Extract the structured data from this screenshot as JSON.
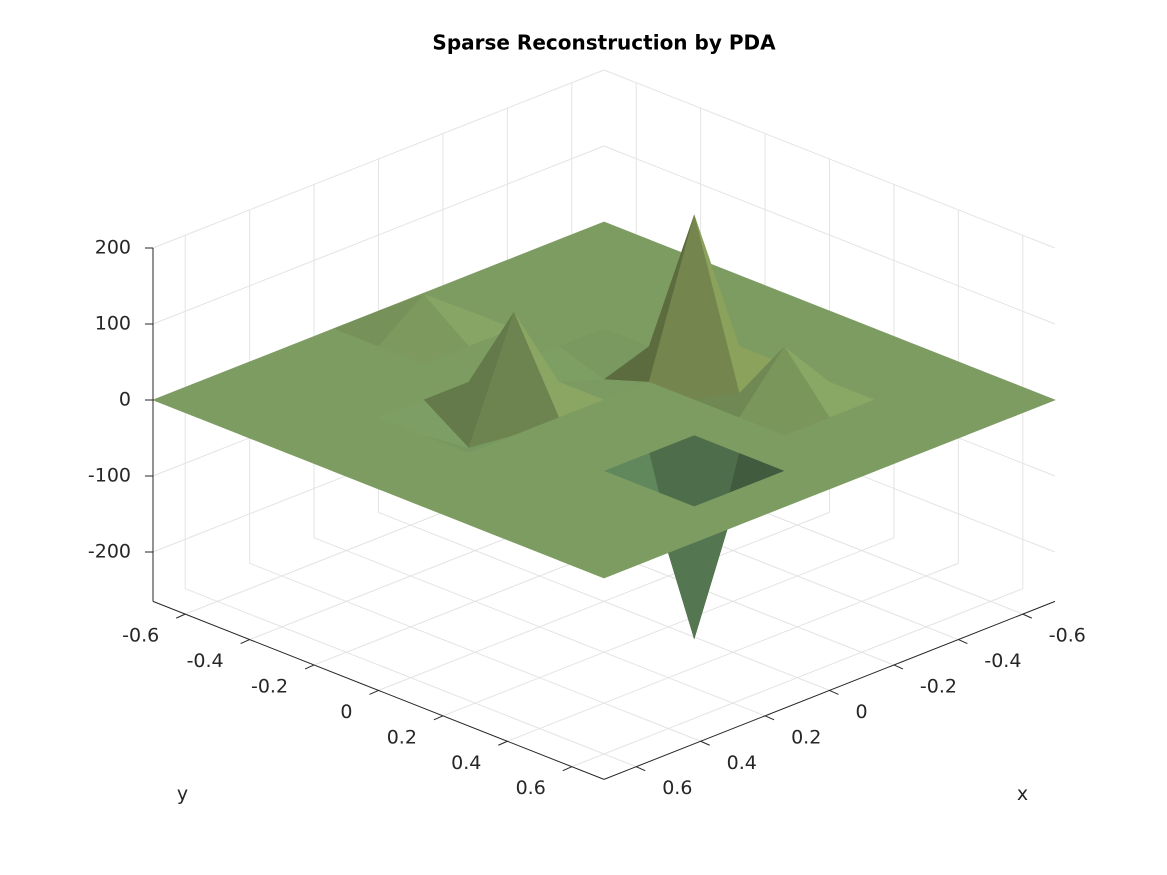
{
  "chart_data": {
    "type": "surface",
    "title": "Sparse Reconstruction by PDA",
    "xlabel": "x",
    "ylabel": "y",
    "x": [
      -0.7,
      -0.56,
      -0.42,
      -0.28,
      -0.14,
      0,
      0.14,
      0.28,
      0.42,
      0.56,
      0.7
    ],
    "y": [
      -0.7,
      -0.56,
      -0.42,
      -0.28,
      -0.14,
      0,
      0.14,
      0.28,
      0.42,
      0.56,
      0.7
    ],
    "z": [
      [
        0,
        0,
        0,
        0,
        0,
        0,
        0,
        0,
        0,
        0,
        0
      ],
      [
        0,
        0,
        0,
        0,
        0,
        45,
        0,
        0,
        0,
        0,
        0
      ],
      [
        0,
        0,
        0,
        0,
        0,
        0,
        0,
        0,
        0,
        0,
        0
      ],
      [
        0,
        0,
        0,
        0,
        0,
        0,
        0,
        0,
        0,
        0,
        0
      ],
      [
        0,
        0,
        0,
        0,
        -20,
        0,
        115,
        -40,
        0,
        0,
        0
      ],
      [
        0,
        0,
        0,
        196,
        0,
        0,
        0,
        0,
        0,
        0,
        0
      ],
      [
        0,
        0,
        0,
        -15,
        0,
        0,
        0,
        0,
        0,
        0,
        0
      ],
      [
        0,
        0,
        0,
        70,
        0,
        0,
        0,
        0,
        0,
        0,
        0
      ],
      [
        0,
        0,
        0,
        0,
        0,
        0,
        -220,
        0,
        0,
        0,
        0
      ],
      [
        0,
        0,
        0,
        0,
        0,
        0,
        0,
        0,
        0,
        0,
        0
      ],
      [
        0,
        0,
        0,
        0,
        0,
        0,
        0,
        0,
        0,
        0,
        0
      ]
    ],
    "xlim": [
      -0.7,
      0.7
    ],
    "ylim": [
      -0.7,
      0.7
    ],
    "zlim": [
      -265,
      200
    ],
    "xticks": [
      -0.6,
      -0.4,
      -0.2,
      0,
      0.2,
      0.4,
      0.6
    ],
    "yticks": [
      -0.6,
      -0.4,
      -0.2,
      0,
      0.2,
      0.4,
      0.6
    ],
    "zticks": [
      -200,
      -100,
      0,
      100,
      200
    ],
    "grid": true,
    "colormap": [
      "#0c5a4e",
      "#6f9463",
      "#d2cf5c"
    ]
  }
}
